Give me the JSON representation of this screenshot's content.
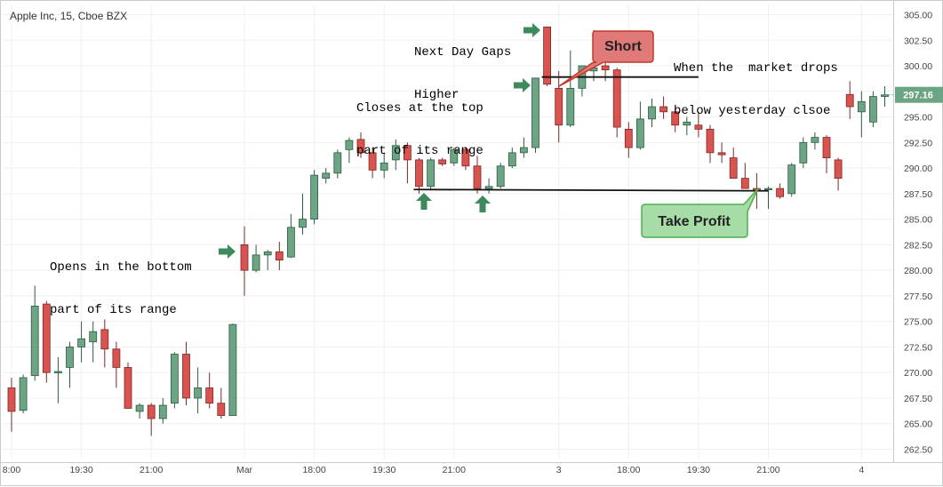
{
  "header": {
    "title": "Apple Inc, 15, Cboe BZX"
  },
  "annotations": {
    "gap_note": [
      "Next Day Gaps",
      "Higher"
    ],
    "close_note": [
      "Closes at the top",
      "part of its range"
    ],
    "open_note": [
      "Opens in the bottom",
      "part of its range"
    ],
    "drop_note": [
      "When the  market drops",
      "below yesterday clsoe"
    ],
    "short_label": "Short",
    "take_profit_label": "Take Profit"
  },
  "colors": {
    "up": "#6ba583",
    "down": "#d9534f",
    "up_border": "#2f5b43",
    "down_border": "#7a2a27",
    "arrow": "#3d8a5c",
    "short_fill": "#e07a78",
    "short_border": "#c0392b",
    "tp_fill": "#a6dca6",
    "tp_border": "#4caf50",
    "last_price_bg": "#6ba583"
  },
  "chart_data": {
    "type": "candlestick",
    "title": "Apple Inc, 15, Cboe BZX",
    "ylim": [
      261.5,
      306.0
    ],
    "y_ticks": [
      "305.00",
      "302.50",
      "300.00",
      "297.50",
      "295.00",
      "292.50",
      "290.00",
      "287.50",
      "285.00",
      "282.50",
      "280.00",
      "277.50",
      "275.00",
      "272.50",
      "270.00",
      "267.50",
      "265.00",
      "262.50"
    ],
    "x_ticks": [
      {
        "label": "8:00",
        "index": 0
      },
      {
        "label": "19:30",
        "index": 6
      },
      {
        "label": "21:00",
        "index": 12
      },
      {
        "label": "Mar",
        "index": 20
      },
      {
        "label": "18:00",
        "index": 26
      },
      {
        "label": "19:30",
        "index": 32
      },
      {
        "label": "21:00",
        "index": 38
      },
      {
        "label": "3",
        "index": 47
      },
      {
        "label": "18:00",
        "index": 53
      },
      {
        "label": "19:30",
        "index": 59
      },
      {
        "label": "21:00",
        "index": 65
      },
      {
        "label": "4",
        "index": 73
      }
    ],
    "last_price": "297.16",
    "candles": [
      {
        "o": 268.5,
        "h": 269.5,
        "l": 264.2,
        "c": 266.2
      },
      {
        "o": 266.3,
        "h": 269.8,
        "l": 266.0,
        "c": 269.5
      },
      {
        "o": 269.7,
        "h": 278.5,
        "l": 269.2,
        "c": 276.5
      },
      {
        "o": 276.7,
        "h": 277.0,
        "l": 269.0,
        "c": 270.0
      },
      {
        "o": 270.0,
        "h": 271.5,
        "l": 267.0,
        "c": 270.1
      },
      {
        "o": 270.5,
        "h": 273.0,
        "l": 268.5,
        "c": 272.5
      },
      {
        "o": 272.5,
        "h": 275.0,
        "l": 271.0,
        "c": 273.3
      },
      {
        "o": 273.0,
        "h": 275.0,
        "l": 271.0,
        "c": 274.0
      },
      {
        "o": 274.2,
        "h": 275.2,
        "l": 270.5,
        "c": 272.3
      },
      {
        "o": 272.3,
        "h": 273.0,
        "l": 268.5,
        "c": 270.5
      },
      {
        "o": 270.5,
        "h": 271.0,
        "l": 266.5,
        "c": 266.5
      },
      {
        "o": 266.2,
        "h": 267.0,
        "l": 265.5,
        "c": 266.8
      },
      {
        "o": 266.8,
        "h": 267.0,
        "l": 263.8,
        "c": 265.5
      },
      {
        "o": 265.5,
        "h": 267.5,
        "l": 265.0,
        "c": 266.8
      },
      {
        "o": 267.0,
        "h": 272.0,
        "l": 266.5,
        "c": 271.8
      },
      {
        "o": 271.8,
        "h": 273.0,
        "l": 266.8,
        "c": 267.5
      },
      {
        "o": 267.5,
        "h": 270.5,
        "l": 266.0,
        "c": 268.5
      },
      {
        "o": 268.5,
        "h": 270.0,
        "l": 266.5,
        "c": 267.0
      },
      {
        "o": 267.0,
        "h": 268.5,
        "l": 265.5,
        "c": 265.8
      },
      {
        "o": 265.8,
        "h": 274.8,
        "l": 265.8,
        "c": 274.7
      },
      {
        "o": 282.5,
        "h": 284.3,
        "l": 277.5,
        "c": 280.0
      },
      {
        "o": 280.0,
        "h": 282.5,
        "l": 279.8,
        "c": 281.5
      },
      {
        "o": 281.5,
        "h": 282.0,
        "l": 280.0,
        "c": 281.8
      },
      {
        "o": 281.8,
        "h": 282.8,
        "l": 280.0,
        "c": 281.0
      },
      {
        "o": 281.3,
        "h": 285.5,
        "l": 281.2,
        "c": 284.2
      },
      {
        "o": 284.2,
        "h": 287.5,
        "l": 283.5,
        "c": 285.0
      },
      {
        "o": 285.0,
        "h": 289.8,
        "l": 284.5,
        "c": 289.3
      },
      {
        "o": 289.0,
        "h": 290.0,
        "l": 288.5,
        "c": 289.5
      },
      {
        "o": 289.5,
        "h": 291.8,
        "l": 289.0,
        "c": 291.5
      },
      {
        "o": 291.8,
        "h": 293.0,
        "l": 290.5,
        "c": 292.7
      },
      {
        "o": 292.8,
        "h": 293.5,
        "l": 291.0,
        "c": 291.5
      },
      {
        "o": 291.5,
        "h": 292.0,
        "l": 289.0,
        "c": 289.8
      },
      {
        "o": 289.8,
        "h": 291.5,
        "l": 289.0,
        "c": 290.5
      },
      {
        "o": 290.8,
        "h": 292.8,
        "l": 289.8,
        "c": 292.2
      },
      {
        "o": 292.2,
        "h": 292.5,
        "l": 288.5,
        "c": 290.8
      },
      {
        "o": 290.8,
        "h": 291.0,
        "l": 287.5,
        "c": 288.2
      },
      {
        "o": 288.2,
        "h": 291.0,
        "l": 287.8,
        "c": 290.8
      },
      {
        "o": 290.8,
        "h": 291.0,
        "l": 290.2,
        "c": 290.4
      },
      {
        "o": 290.5,
        "h": 292.0,
        "l": 290.2,
        "c": 291.8
      },
      {
        "o": 291.8,
        "h": 292.0,
        "l": 289.8,
        "c": 290.2
      },
      {
        "o": 290.2,
        "h": 291.2,
        "l": 287.5,
        "c": 288.0
      },
      {
        "o": 288.0,
        "h": 289.0,
        "l": 287.5,
        "c": 288.2
      },
      {
        "o": 288.2,
        "h": 290.5,
        "l": 288.0,
        "c": 290.2
      },
      {
        "o": 290.2,
        "h": 292.0,
        "l": 290.0,
        "c": 291.5
      },
      {
        "o": 291.5,
        "h": 293.0,
        "l": 291.0,
        "c": 292.0
      },
      {
        "o": 292.0,
        "h": 298.8,
        "l": 291.5,
        "c": 298.8
      },
      {
        "o": 303.8,
        "h": 303.8,
        "l": 298.0,
        "c": 298.2
      },
      {
        "o": 297.8,
        "h": 299.5,
        "l": 292.5,
        "c": 294.2
      },
      {
        "o": 294.2,
        "h": 301.5,
        "l": 294.0,
        "c": 297.8
      },
      {
        "o": 297.8,
        "h": 300.0,
        "l": 297.0,
        "c": 300.0
      },
      {
        "o": 299.5,
        "h": 303.5,
        "l": 298.5,
        "c": 299.8
      },
      {
        "o": 300.0,
        "h": 301.0,
        "l": 298.5,
        "c": 299.6
      },
      {
        "o": 299.6,
        "h": 299.8,
        "l": 293.0,
        "c": 294.0
      },
      {
        "o": 293.8,
        "h": 294.5,
        "l": 291.0,
        "c": 292.0
      },
      {
        "o": 292.0,
        "h": 296.5,
        "l": 291.8,
        "c": 294.8
      },
      {
        "o": 294.8,
        "h": 296.8,
        "l": 294.0,
        "c": 296.0
      },
      {
        "o": 296.0,
        "h": 297.0,
        "l": 294.8,
        "c": 295.5
      },
      {
        "o": 295.5,
        "h": 296.0,
        "l": 293.5,
        "c": 294.2
      },
      {
        "o": 294.2,
        "h": 295.0,
        "l": 293.2,
        "c": 294.5
      },
      {
        "o": 294.2,
        "h": 295.5,
        "l": 293.0,
        "c": 293.8
      },
      {
        "o": 293.8,
        "h": 294.2,
        "l": 290.5,
        "c": 291.5
      },
      {
        "o": 291.5,
        "h": 292.5,
        "l": 290.5,
        "c": 291.3
      },
      {
        "o": 291.0,
        "h": 292.0,
        "l": 289.0,
        "c": 289.0
      },
      {
        "o": 289.0,
        "h": 290.5,
        "l": 288.0,
        "c": 288.0
      },
      {
        "o": 288.0,
        "h": 289.5,
        "l": 286.0,
        "c": 287.8
      },
      {
        "o": 287.9,
        "h": 288.2,
        "l": 286.0,
        "c": 288.0
      },
      {
        "o": 288.0,
        "h": 288.5,
        "l": 287.0,
        "c": 287.2
      },
      {
        "o": 287.5,
        "h": 290.5,
        "l": 287.2,
        "c": 290.3
      },
      {
        "o": 290.5,
        "h": 293.0,
        "l": 290.0,
        "c": 292.5
      },
      {
        "o": 292.5,
        "h": 293.5,
        "l": 291.8,
        "c": 293.0
      },
      {
        "o": 293.0,
        "h": 293.2,
        "l": 289.5,
        "c": 291.0
      },
      {
        "o": 290.8,
        "h": 291.0,
        "l": 287.8,
        "c": 289.0
      },
      {
        "o": 297.2,
        "h": 298.5,
        "l": 294.8,
        "c": 296.0
      },
      {
        "o": 295.5,
        "h": 297.5,
        "l": 293.0,
        "c": 296.5
      },
      {
        "o": 294.5,
        "h": 297.5,
        "l": 294.0,
        "c": 297.0
      },
      {
        "o": 297.0,
        "h": 298.0,
        "l": 296.0,
        "c": 297.16
      }
    ],
    "lines": [
      {
        "name": "resistance",
        "start_index": 46,
        "end_index": 59,
        "value": 298.9
      },
      {
        "name": "support",
        "start_index": 35,
        "end_index": 65,
        "value": 287.9
      }
    ]
  }
}
